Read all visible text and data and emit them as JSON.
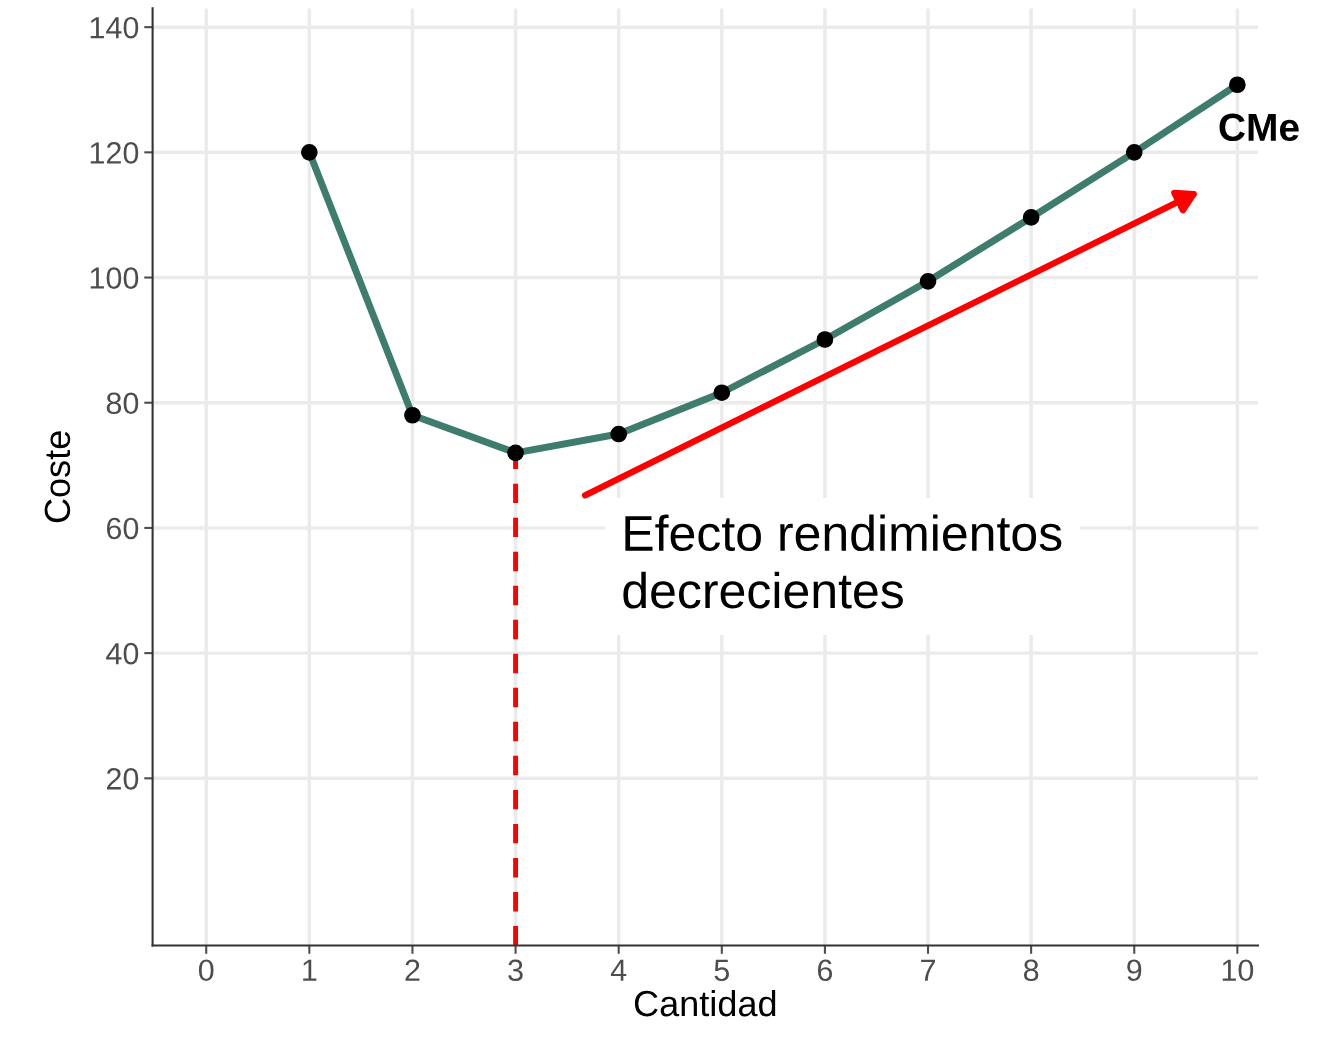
{
  "chart_data": {
    "type": "line",
    "xlabel": "Cantidad",
    "ylabel": "Coste",
    "x": [
      1,
      2,
      3,
      4,
      5,
      6,
      7,
      8,
      9,
      10
    ],
    "series": [
      {
        "name": "CMe",
        "color": "#3e7d6e",
        "values": [
          120,
          78,
          72,
          75,
          81.6,
          90.1,
          99.4,
          109.6,
          120,
          130.8
        ]
      }
    ],
    "xlim": [
      -0.52,
      10.2
    ],
    "ylim": [
      -6.7,
      143
    ],
    "xticks": [
      0,
      1,
      2,
      3,
      4,
      5,
      6,
      7,
      8,
      9,
      10
    ],
    "yticks": [
      20,
      40,
      60,
      80,
      100,
      120,
      140
    ],
    "ref_lines": [
      {
        "axis": "x",
        "value": 3,
        "color": "#ff0000",
        "line_style": "dashed"
      }
    ],
    "annotations": [
      "Efecto rendimientos decrecientes"
    ],
    "grid": true,
    "marker": "circle",
    "line_style": "solid",
    "legend": false
  }
}
